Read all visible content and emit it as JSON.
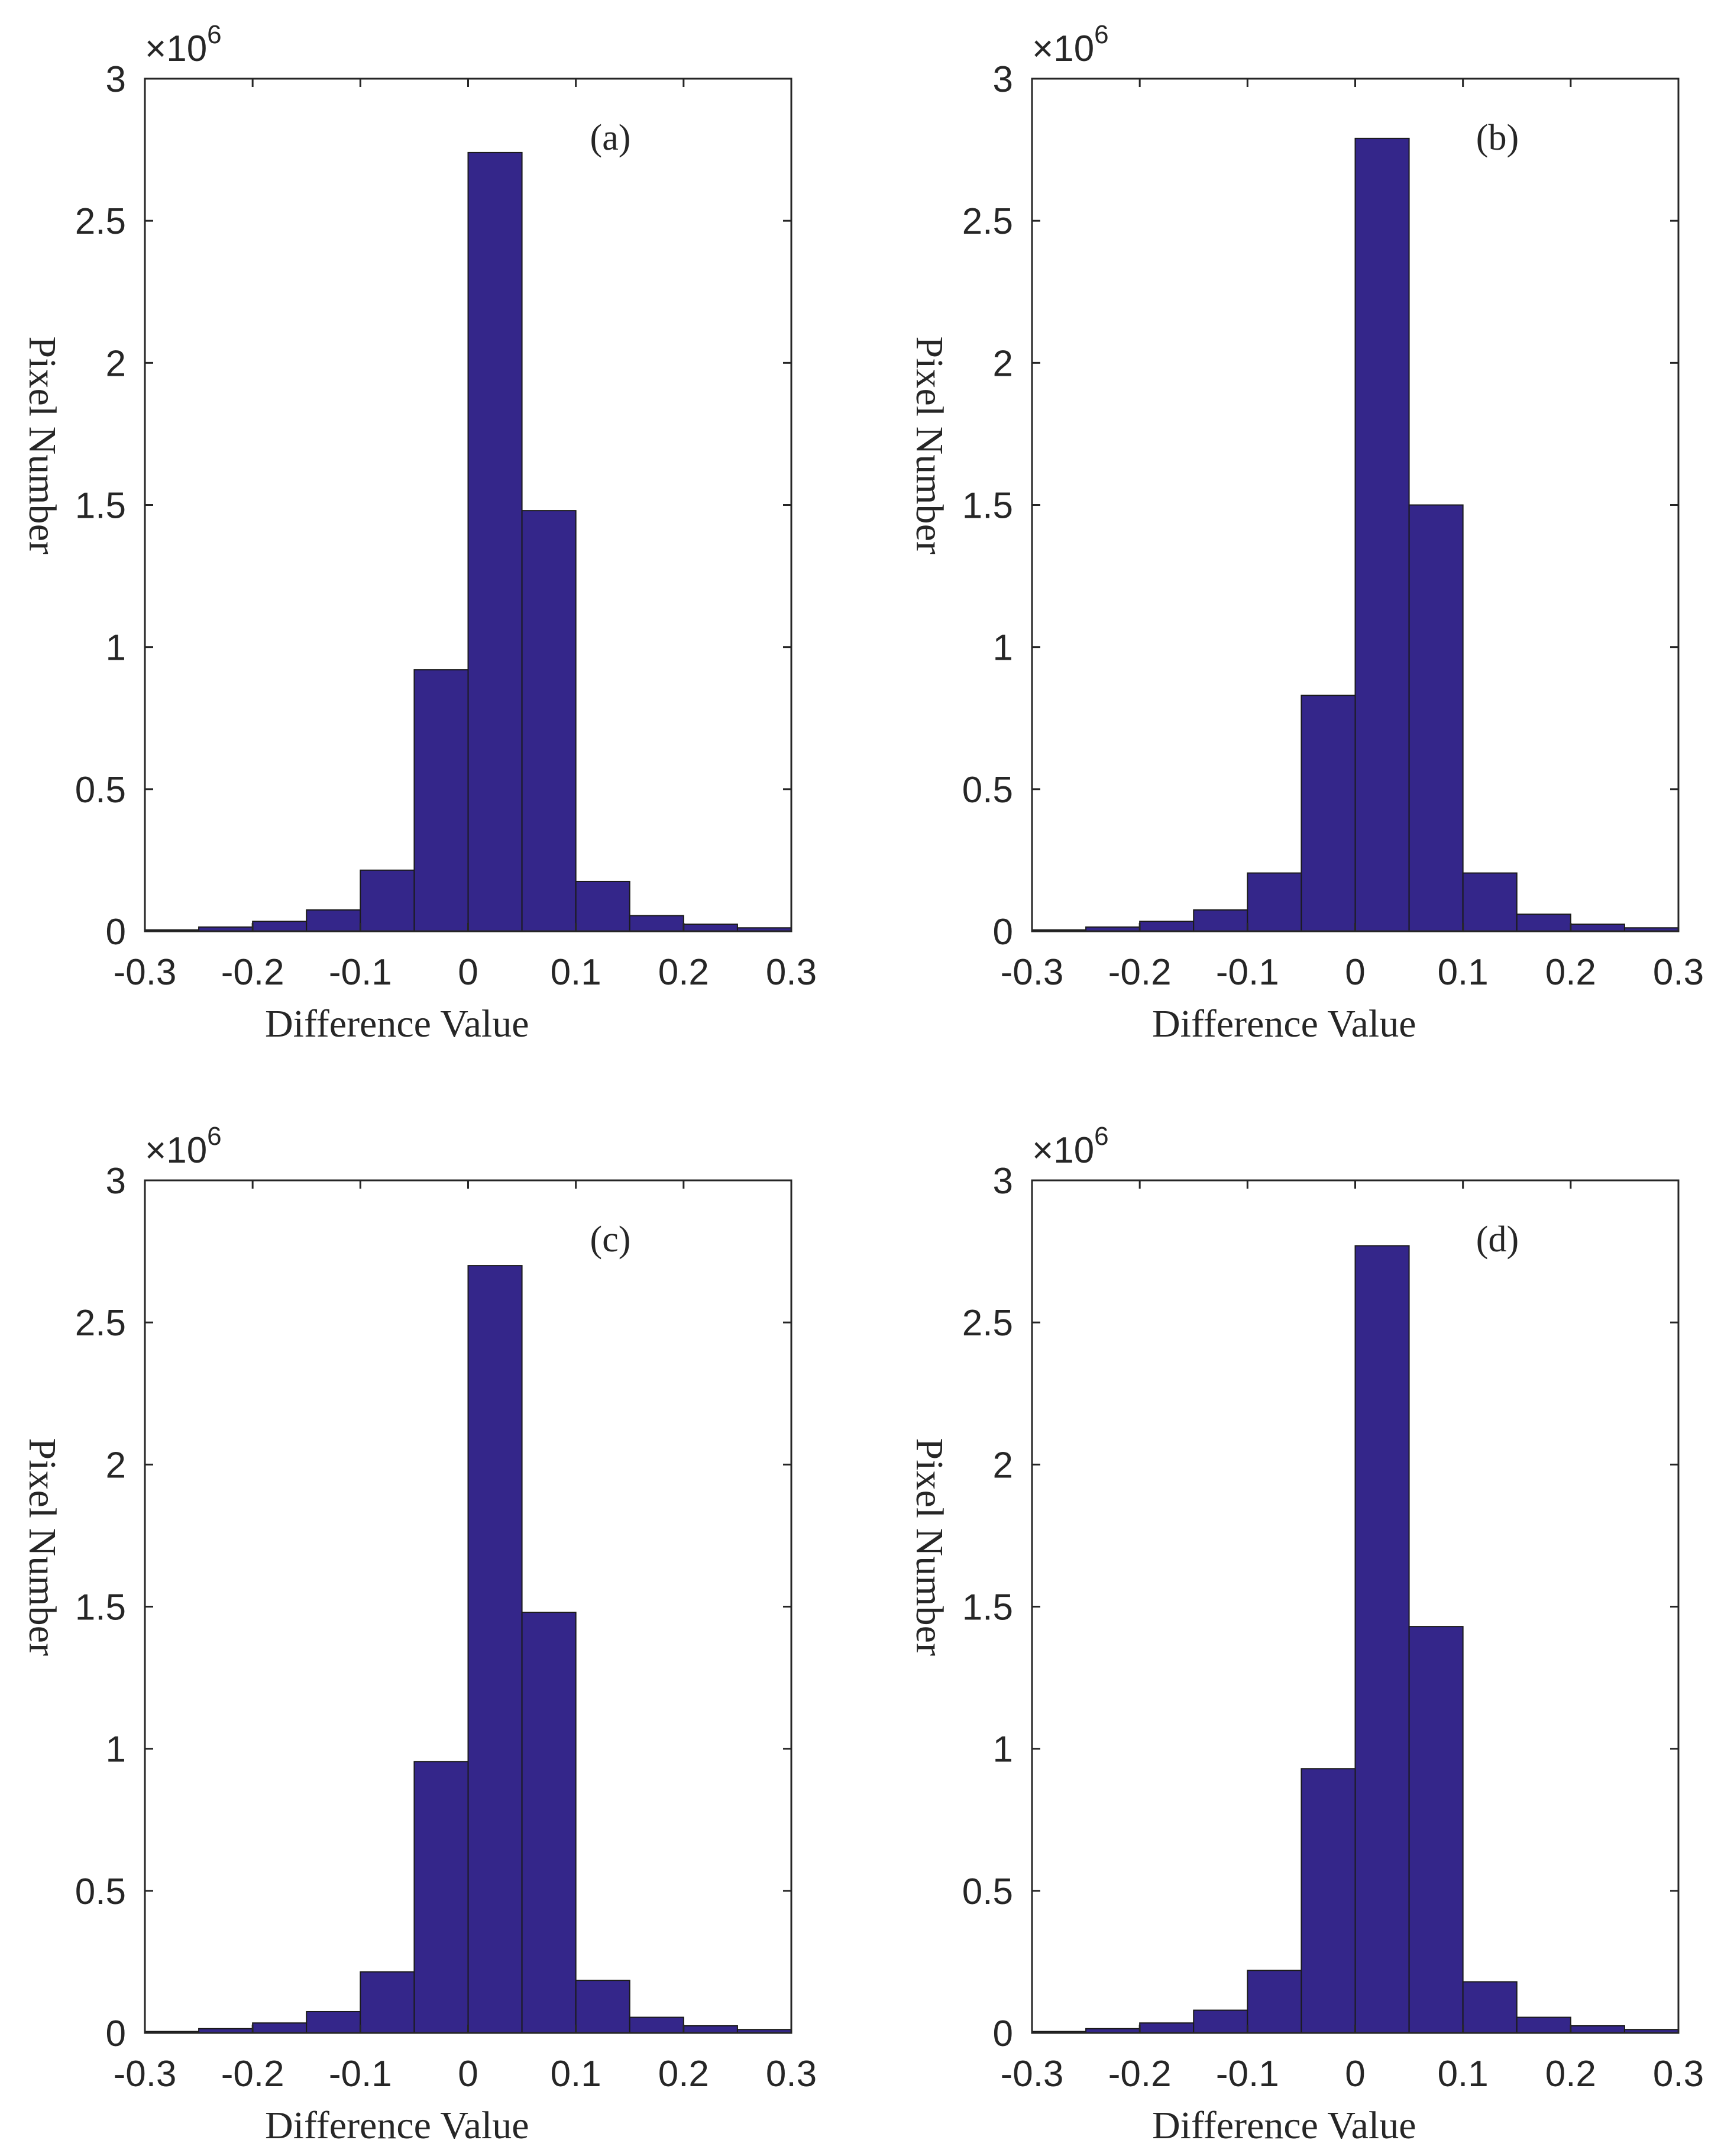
{
  "chart_data": [
    {
      "type": "bar",
      "panel_label": "(a)",
      "xlabel": "Difference Value",
      "ylabel": "Pixel Number",
      "y_exponent_prefix": "×10",
      "y_exponent_power": "6",
      "xlim": [
        -0.3,
        0.3
      ],
      "ylim": [
        0,
        3
      ],
      "x_ticks": [
        "-0.3",
        "-0.2",
        "-0.1",
        "0",
        "0.1",
        "0.2",
        "0.3"
      ],
      "y_ticks": [
        "0",
        "0.5",
        "1",
        "1.5",
        "2",
        "2.5",
        "3"
      ],
      "bin_edges": [
        -0.3,
        -0.25,
        -0.2,
        -0.15,
        -0.1,
        -0.05,
        0.0,
        0.05,
        0.1,
        0.15,
        0.2,
        0.25,
        0.3
      ],
      "values": [
        0.005,
        0.015,
        0.035,
        0.075,
        0.215,
        0.92,
        2.74,
        1.48,
        0.175,
        0.055,
        0.025,
        0.012
      ],
      "bar_color": "#34268a",
      "edge_color": "#1a1a1a"
    },
    {
      "type": "bar",
      "panel_label": "(b)",
      "xlabel": "Difference Value",
      "ylabel": "Pixel Number",
      "y_exponent_prefix": "×10",
      "y_exponent_power": "6",
      "xlim": [
        -0.3,
        0.3
      ],
      "ylim": [
        0,
        3
      ],
      "x_ticks": [
        "-0.3",
        "-0.2",
        "-0.1",
        "0",
        "0.1",
        "0.2",
        "0.3"
      ],
      "y_ticks": [
        "0",
        "0.5",
        "1",
        "1.5",
        "2",
        "2.5",
        "3"
      ],
      "bin_edges": [
        -0.3,
        -0.25,
        -0.2,
        -0.15,
        -0.1,
        -0.05,
        0.0,
        0.05,
        0.1,
        0.15,
        0.2,
        0.25,
        0.3
      ],
      "values": [
        0.005,
        0.015,
        0.035,
        0.075,
        0.205,
        0.83,
        2.79,
        1.5,
        0.205,
        0.06,
        0.025,
        0.012
      ],
      "bar_color": "#34268a",
      "edge_color": "#1a1a1a"
    },
    {
      "type": "bar",
      "panel_label": "(c)",
      "xlabel": "Difference Value",
      "ylabel": "Pixel Number",
      "y_exponent_prefix": "×10",
      "y_exponent_power": "6",
      "xlim": [
        -0.3,
        0.3
      ],
      "ylim": [
        0,
        3
      ],
      "x_ticks": [
        "-0.3",
        "-0.2",
        "-0.1",
        "0",
        "0.1",
        "0.2",
        "0.3"
      ],
      "y_ticks": [
        "0",
        "0.5",
        "1",
        "1.5",
        "2",
        "2.5",
        "3"
      ],
      "bin_edges": [
        -0.3,
        -0.25,
        -0.2,
        -0.15,
        -0.1,
        -0.05,
        0.0,
        0.05,
        0.1,
        0.15,
        0.2,
        0.25,
        0.3
      ],
      "values": [
        0.005,
        0.015,
        0.035,
        0.075,
        0.215,
        0.955,
        2.7,
        1.48,
        0.185,
        0.055,
        0.025,
        0.012
      ],
      "bar_color": "#34268a",
      "edge_color": "#1a1a1a"
    },
    {
      "type": "bar",
      "panel_label": "(d)",
      "xlabel": "Difference Value",
      "ylabel": "Pixel Number",
      "y_exponent_prefix": "×10",
      "y_exponent_power": "6",
      "xlim": [
        -0.3,
        0.3
      ],
      "ylim": [
        0,
        3
      ],
      "x_ticks": [
        "-0.3",
        "-0.2",
        "-0.1",
        "0",
        "0.1",
        "0.2",
        "0.3"
      ],
      "y_ticks": [
        "0",
        "0.5",
        "1",
        "1.5",
        "2",
        "2.5",
        "3"
      ],
      "bin_edges": [
        -0.3,
        -0.25,
        -0.2,
        -0.15,
        -0.1,
        -0.05,
        0.0,
        0.05,
        0.1,
        0.15,
        0.2,
        0.25,
        0.3
      ],
      "values": [
        0.005,
        0.015,
        0.035,
        0.08,
        0.22,
        0.93,
        2.77,
        1.43,
        0.18,
        0.055,
        0.025,
        0.012
      ],
      "bar_color": "#34268a",
      "edge_color": "#1a1a1a"
    }
  ]
}
